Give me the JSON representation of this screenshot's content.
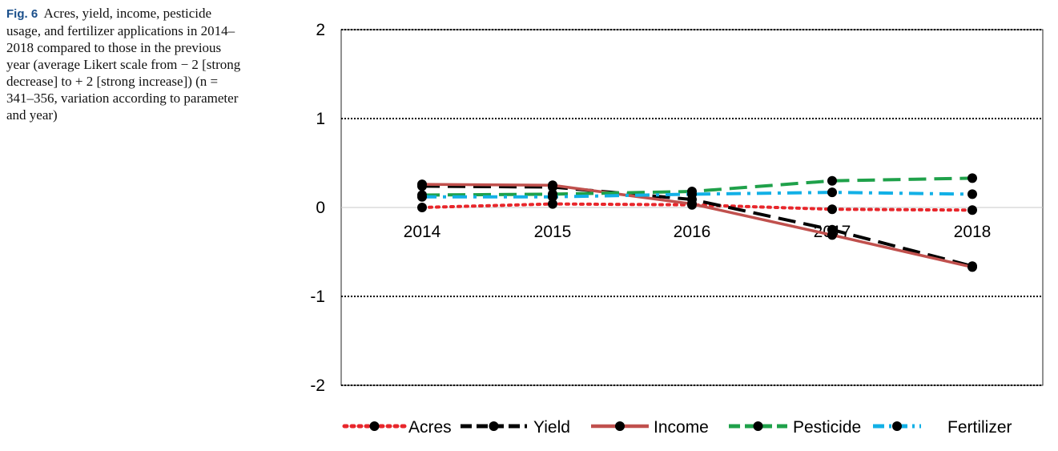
{
  "caption": {
    "label": "Fig. 6",
    "text": "Acres, yield, income, pesticide usage, and fertilizer applications in 2014–2018 compared to those in the previous year (average Likert scale from − 2 [strong decrease] to + 2 [strong increase]) (n = 341–356, variation according to parameter and year)"
  },
  "chart_data": {
    "type": "line",
    "title": "",
    "xlabel": "",
    "ylabel": "",
    "categories": [
      "2014",
      "2015",
      "2016",
      "2017",
      "2018"
    ],
    "ylim": [
      -2,
      2
    ],
    "yticks": [
      -2,
      -1,
      0,
      1,
      2
    ],
    "grid": "horizontal dotted",
    "legend_position": "bottom",
    "series": [
      {
        "name": "Acres",
        "values": [
          0.0,
          0.04,
          0.03,
          -0.02,
          -0.03
        ],
        "color": "#e8262b",
        "style": "dotted"
      },
      {
        "name": "Yield",
        "values": [
          0.24,
          0.23,
          0.09,
          -0.25,
          -0.66
        ],
        "color": "#000000",
        "style": "dashed"
      },
      {
        "name": "Income",
        "values": [
          0.26,
          0.25,
          0.04,
          -0.31,
          -0.67
        ],
        "color": "#c0504d",
        "style": "solid"
      },
      {
        "name": "Pesticide",
        "values": [
          0.14,
          0.15,
          0.18,
          0.3,
          0.33
        ],
        "color": "#1fa14a",
        "style": "dashed"
      },
      {
        "name": "Fertilizer",
        "values": [
          0.12,
          0.12,
          0.15,
          0.17,
          0.15
        ],
        "color": "#12b0e6",
        "style": "dashdot"
      }
    ]
  }
}
